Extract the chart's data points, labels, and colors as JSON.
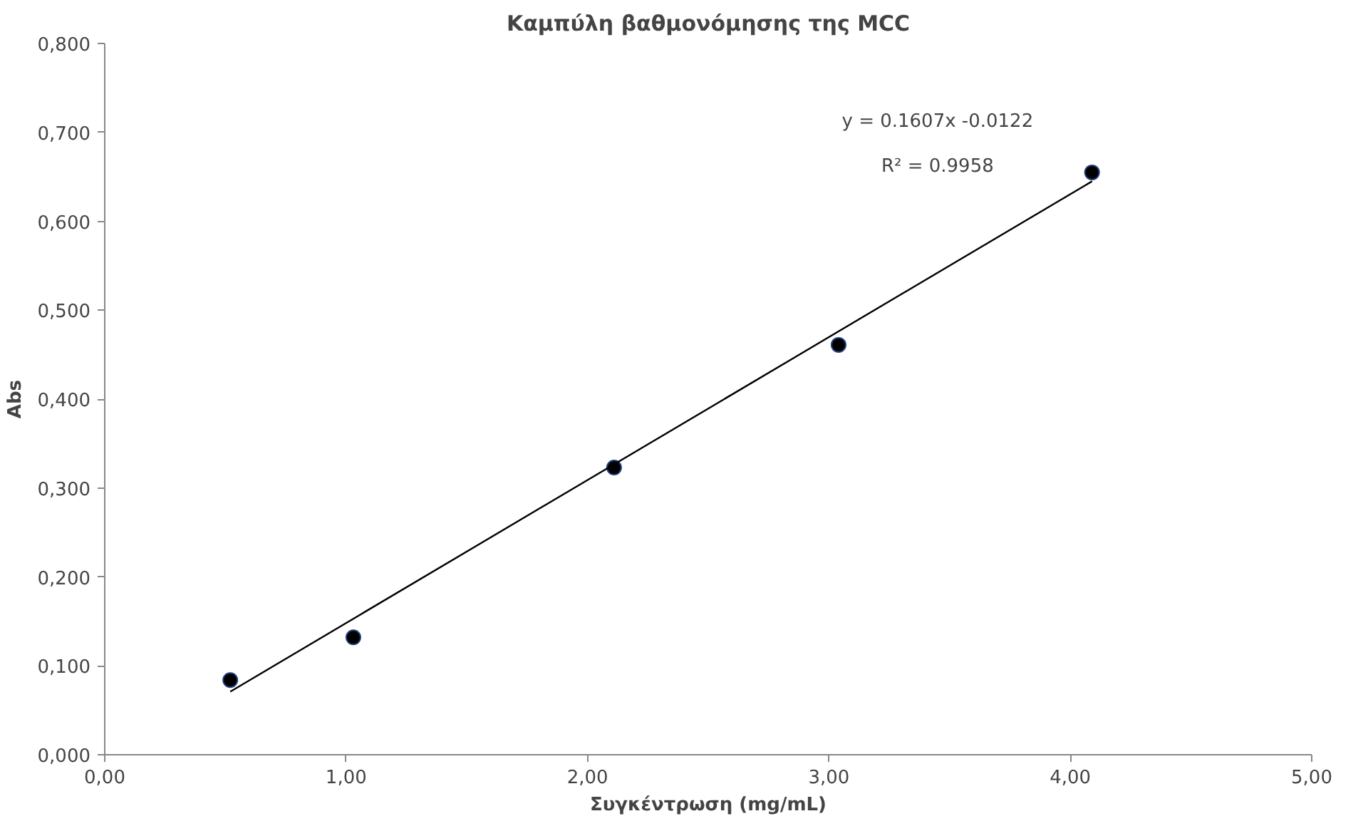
{
  "chart_data": {
    "type": "scatter",
    "title": "Καμπύλη βαθμονόμησης της MCC",
    "xlabel": "Συγκέντρωση (mg/mL)",
    "ylabel": "Abs",
    "series": [
      {
        "color": "#000000",
        "marker": "circle",
        "x": [
          0.52,
          1.03,
          2.11,
          3.04,
          4.09
        ],
        "values": [
          0.084,
          0.132,
          0.323,
          0.461,
          0.655
        ]
      },
      {
        "type": "line",
        "marker": "none",
        "color": "#000000",
        "x": [
          0.52,
          4.09
        ],
        "values": [
          0.071,
          0.645
        ]
      }
    ],
    "annotations": [
      "y = 0.1607x -0.0122",
      "R² = 0.9958"
    ],
    "xlim": [
      0,
      5
    ],
    "xticks": [
      {
        "value": 0,
        "label": "0,00"
      },
      {
        "value": 1,
        "label": "1,00"
      },
      {
        "value": 2,
        "label": "2,00"
      },
      {
        "value": 3,
        "label": "3,00"
      },
      {
        "value": 4,
        "label": "4,00"
      },
      {
        "value": 5,
        "label": "5,00"
      }
    ],
    "ylim": [
      0,
      0.8
    ],
    "yticks": [
      {
        "value": 0,
        "label": "0,000"
      },
      {
        "value": 0.1,
        "label": "0,100"
      },
      {
        "value": 0.2,
        "label": "0,200"
      },
      {
        "value": 0.3,
        "label": "0,300"
      },
      {
        "value": 0.4,
        "label": "0,400"
      },
      {
        "value": 0.5,
        "label": "0,500"
      },
      {
        "value": 0.6,
        "label": "0,600"
      },
      {
        "value": 0.7,
        "label": "0,700"
      },
      {
        "value": 0.8,
        "label": "0,800"
      }
    ],
    "grid": false
  }
}
